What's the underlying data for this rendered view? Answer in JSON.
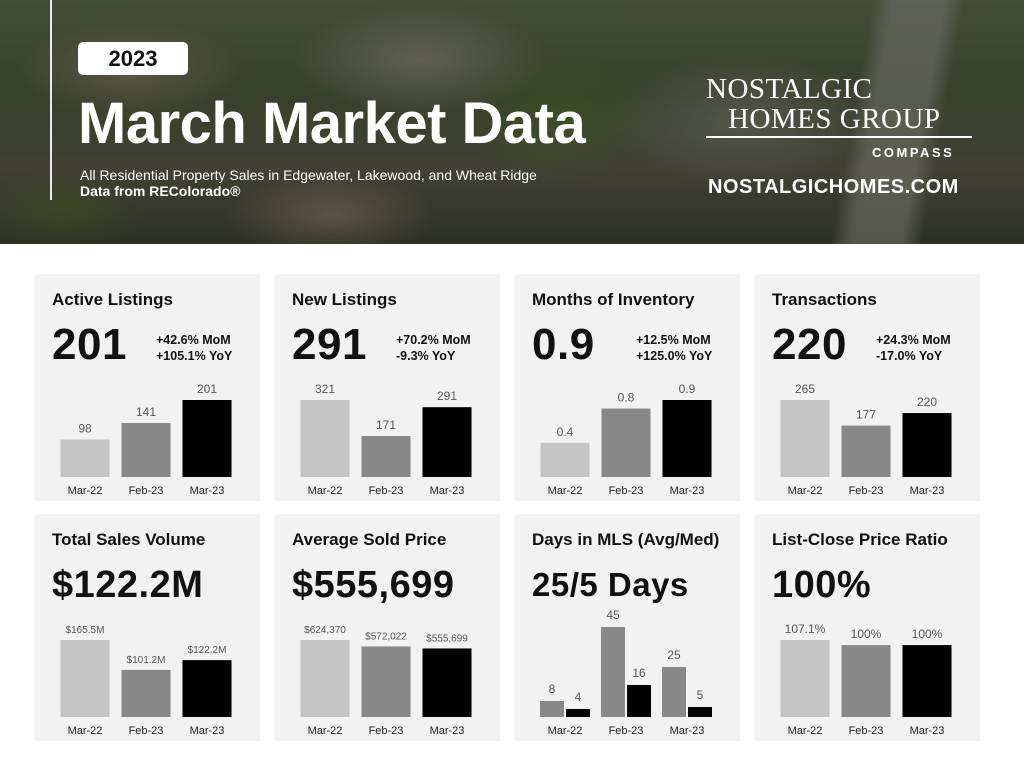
{
  "header": {
    "year": "2023",
    "title": "March Market Data",
    "subtitle": "All Residential Property Sales in Edgewater, Lakewood, and Wheat Ridge",
    "source": "Data from REColorado®",
    "brand_line1": "NOSTALGIC",
    "brand_line2": "HOMES GROUP",
    "brand_sub": "COMPASS",
    "url": "NOSTALGICHOMES.COM"
  },
  "colors": {
    "light": "#c4c4c4",
    "mid": "#888888",
    "dark": "#000000",
    "card_bg": "#f2f2f2",
    "label": "#555555"
  },
  "cards": [
    {
      "title": "Active Listings",
      "value": "201",
      "mom": "+42.6% MoM",
      "yoy": "+105.1% YoY"
    },
    {
      "title": "New Listings",
      "value": "291",
      "mom": "+70.2% MoM",
      "yoy": "-9.3% YoY"
    },
    {
      "title": "Months of Inventory",
      "value": "0.9",
      "mom": "+12.5% MoM",
      "yoy": "+125.0% YoY"
    },
    {
      "title": "Transactions",
      "value": "220",
      "mom": "+24.3% MoM",
      "yoy": "-17.0% YoY"
    },
    {
      "title": "Total Sales Volume",
      "value": "$122.2M"
    },
    {
      "title": "Average Sold Price",
      "value": "$555,699"
    },
    {
      "title": "Days in MLS (Avg/Med)",
      "value": "25/5 Days"
    },
    {
      "title": "List-Close Price Ratio",
      "value": "100%"
    }
  ],
  "chart_data": [
    {
      "type": "bar",
      "title": "Active Listings",
      "categories": [
        "Mar-22",
        "Feb-23",
        "Mar-23"
      ],
      "values": [
        98,
        141,
        201
      ],
      "labels": [
        "98",
        "141",
        "201"
      ],
      "ylim": [
        0,
        201
      ]
    },
    {
      "type": "bar",
      "title": "New Listings",
      "categories": [
        "Mar-22",
        "Feb-23",
        "Mar-23"
      ],
      "values": [
        321,
        171,
        291
      ],
      "labels": [
        "321",
        "171",
        "291"
      ],
      "ylim": [
        0,
        321
      ]
    },
    {
      "type": "bar",
      "title": "Months of Inventory",
      "categories": [
        "Mar-22",
        "Feb-23",
        "Mar-23"
      ],
      "values": [
        0.4,
        0.8,
        0.9
      ],
      "labels": [
        "0.4",
        "0.8",
        "0.9"
      ],
      "ylim": [
        0,
        0.9
      ]
    },
    {
      "type": "bar",
      "title": "Transactions",
      "categories": [
        "Mar-22",
        "Feb-23",
        "Mar-23"
      ],
      "values": [
        265,
        177,
        220
      ],
      "labels": [
        "265",
        "177",
        "220"
      ],
      "ylim": [
        0,
        265
      ]
    },
    {
      "type": "bar",
      "title": "Total Sales Volume",
      "categories": [
        "Mar-22",
        "Feb-23",
        "Mar-23"
      ],
      "values": [
        165.5,
        101.2,
        122.2
      ],
      "labels": [
        "$165.5M",
        "$101.2M",
        "$122.2M"
      ],
      "ylim": [
        0,
        165.5
      ]
    },
    {
      "type": "bar",
      "title": "Average Sold Price",
      "categories": [
        "Mar-22",
        "Feb-23",
        "Mar-23"
      ],
      "values": [
        624370,
        572022,
        555699
      ],
      "labels": [
        "$624,370",
        "$572,022",
        "$555,699"
      ],
      "ylim": [
        0,
        624370
      ]
    },
    {
      "type": "bar",
      "title": "Days in MLS (Avg/Med)",
      "categories": [
        "Mar-22",
        "Feb-23",
        "Mar-23"
      ],
      "series": [
        {
          "values": [
            8,
            45,
            25
          ]
        },
        {
          "values": [
            4,
            16,
            5
          ]
        }
      ],
      "ylim": [
        0,
        45
      ]
    },
    {
      "type": "bar",
      "title": "List-Close Price Ratio",
      "categories": [
        "Mar-22",
        "Feb-23",
        "Mar-23"
      ],
      "values": [
        107.1,
        100,
        100
      ],
      "labels": [
        "107.1%",
        "100%",
        "100%"
      ],
      "ylim": [
        0,
        107.1
      ]
    }
  ]
}
